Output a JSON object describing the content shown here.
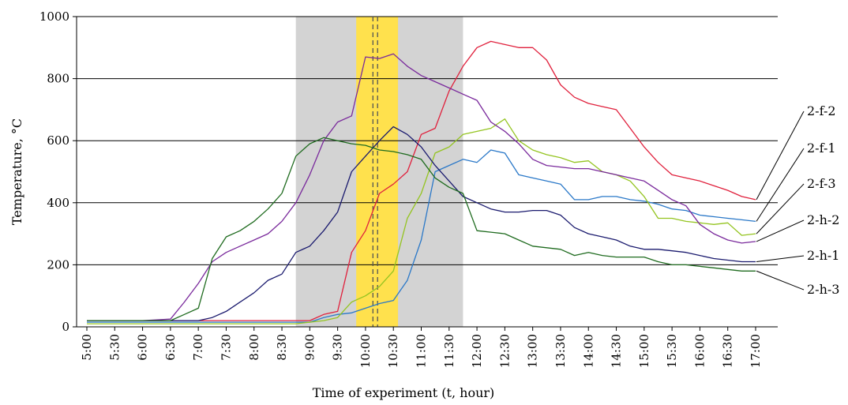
{
  "chart_data": {
    "type": "line",
    "title": "",
    "xlabel": "Time of experiment (t, hour)",
    "ylabel": "Temperature, °C",
    "ylim": [
      0,
      1000
    ],
    "yticks": [
      "0",
      "200",
      "400",
      "600",
      "800",
      "1000"
    ],
    "xlim_hours": [
      5.0,
      17.0
    ],
    "xticks": [
      "5:00",
      "5:30",
      "6:00",
      "6:30",
      "7:00",
      "7:30",
      "8:00",
      "8:30",
      "9:00",
      "9:30",
      "10:00",
      "10:30",
      "11:00",
      "11:30",
      "12:00",
      "12:30",
      "13:00",
      "13:30",
      "14:00",
      "14:30",
      "15:00",
      "15:30",
      "16:00",
      "16:30",
      "17:00"
    ],
    "grid": "horizontal",
    "bands": [
      {
        "from": "8:45",
        "to": "11:45",
        "color": "#d3d3d3"
      },
      {
        "from": "9:50",
        "to": "10:35",
        "color": "#ffe14d"
      }
    ],
    "markers": [
      "10:08",
      "10:13"
    ],
    "series": [
      {
        "name": "2-f-2",
        "color": "#e0203c",
        "x": [
          5.0,
          5.5,
          6.0,
          6.5,
          7.0,
          7.5,
          8.0,
          8.5,
          8.75,
          9.0,
          9.25,
          9.5,
          9.75,
          10.0,
          10.25,
          10.5,
          10.75,
          11.0,
          11.25,
          11.5,
          11.75,
          12.0,
          12.25,
          12.5,
          12.75,
          13.0,
          13.25,
          13.5,
          13.75,
          14.0,
          14.25,
          14.5,
          14.75,
          15.0,
          15.25,
          15.5,
          15.75,
          16.0,
          16.25,
          16.5,
          16.75,
          17.0
        ],
        "y": [
          20,
          20,
          20,
          20,
          20,
          20,
          20,
          20,
          20,
          20,
          40,
          50,
          240,
          310,
          430,
          460,
          500,
          620,
          640,
          760,
          840,
          900,
          920,
          910,
          900,
          900,
          860,
          780,
          740,
          720,
          710,
          700,
          640,
          580,
          530,
          490,
          480,
          470,
          455,
          440,
          420,
          410
        ]
      },
      {
        "name": "2-f-1",
        "color": "#2a78c8",
        "x": [
          5.0,
          5.5,
          6.0,
          6.5,
          7.0,
          7.5,
          8.0,
          8.5,
          8.75,
          9.0,
          9.25,
          9.5,
          9.75,
          10.0,
          10.25,
          10.5,
          10.75,
          11.0,
          11.25,
          11.5,
          11.75,
          12.0,
          12.25,
          12.5,
          12.75,
          13.0,
          13.25,
          13.5,
          13.75,
          14.0,
          14.25,
          14.5,
          14.75,
          15.0,
          15.25,
          15.5,
          15.75,
          16.0,
          16.25,
          16.5,
          16.75,
          17.0
        ],
        "y": [
          15,
          15,
          15,
          15,
          15,
          15,
          15,
          15,
          15,
          15,
          30,
          40,
          45,
          60,
          75,
          85,
          150,
          280,
          500,
          520,
          540,
          530,
          570,
          560,
          490,
          480,
          470,
          460,
          410,
          410,
          420,
          420,
          410,
          405,
          395,
          380,
          375,
          360,
          355,
          350,
          345,
          340
        ]
      },
      {
        "name": "2-f-3",
        "color": "#94c420",
        "x": [
          5.0,
          5.5,
          6.0,
          6.5,
          7.0,
          7.5,
          8.0,
          8.5,
          8.75,
          9.0,
          9.25,
          9.5,
          9.75,
          10.0,
          10.25,
          10.5,
          10.75,
          11.0,
          11.25,
          11.5,
          11.75,
          12.0,
          12.25,
          12.5,
          12.75,
          13.0,
          13.25,
          13.5,
          13.75,
          14.0,
          14.25,
          14.5,
          14.75,
          15.0,
          15.25,
          15.5,
          15.75,
          16.0,
          16.25,
          16.5,
          16.75,
          17.0
        ],
        "y": [
          10,
          10,
          10,
          10,
          10,
          10,
          10,
          10,
          10,
          15,
          20,
          30,
          80,
          100,
          130,
          180,
          350,
          430,
          560,
          580,
          620,
          630,
          640,
          670,
          600,
          570,
          555,
          545,
          530,
          535,
          500,
          490,
          470,
          420,
          350,
          350,
          340,
          335,
          330,
          335,
          295,
          300
        ]
      },
      {
        "name": "2-h-2",
        "color": "#7a2a9c",
        "x": [
          5.0,
          5.5,
          6.0,
          6.5,
          6.75,
          7.0,
          7.25,
          7.5,
          7.75,
          8.0,
          8.25,
          8.5,
          8.75,
          9.0,
          9.25,
          9.5,
          9.75,
          10.0,
          10.25,
          10.5,
          10.75,
          11.0,
          11.25,
          11.5,
          11.75,
          12.0,
          12.25,
          12.5,
          12.75,
          13.0,
          13.25,
          13.5,
          13.75,
          14.0,
          14.25,
          14.5,
          14.75,
          15.0,
          15.25,
          15.5,
          15.75,
          16.0,
          16.25,
          16.5,
          16.75,
          17.0
        ],
        "y": [
          20,
          20,
          20,
          25,
          80,
          140,
          210,
          240,
          260,
          280,
          300,
          340,
          400,
          490,
          600,
          660,
          680,
          870,
          865,
          880,
          840,
          810,
          790,
          770,
          750,
          730,
          660,
          630,
          590,
          540,
          520,
          515,
          510,
          510,
          500,
          490,
          480,
          470,
          440,
          410,
          390,
          330,
          300,
          280,
          270,
          275
        ]
      },
      {
        "name": "2-h-1",
        "color": "#1a1a6e",
        "x": [
          5.0,
          5.5,
          6.0,
          6.5,
          7.0,
          7.25,
          7.5,
          7.75,
          8.0,
          8.25,
          8.5,
          8.75,
          9.0,
          9.25,
          9.5,
          9.75,
          10.0,
          10.25,
          10.5,
          10.75,
          11.0,
          11.25,
          11.5,
          11.75,
          12.0,
          12.25,
          12.5,
          12.75,
          13.0,
          13.25,
          13.5,
          13.75,
          14.0,
          14.25,
          14.5,
          14.75,
          15.0,
          15.25,
          15.5,
          15.75,
          16.0,
          16.25,
          16.5,
          16.75,
          17.0
        ],
        "y": [
          20,
          20,
          20,
          20,
          20,
          30,
          50,
          80,
          110,
          150,
          170,
          240,
          260,
          310,
          370,
          500,
          550,
          600,
          645,
          620,
          580,
          520,
          470,
          420,
          400,
          380,
          370,
          370,
          375,
          375,
          360,
          320,
          300,
          290,
          280,
          260,
          250,
          250,
          245,
          240,
          230,
          220,
          215,
          210,
          210
        ]
      },
      {
        "name": "2-h-3",
        "color": "#1f6b1f",
        "x": [
          5.0,
          5.5,
          6.0,
          6.5,
          6.75,
          7.0,
          7.25,
          7.5,
          7.75,
          8.0,
          8.25,
          8.5,
          8.75,
          9.0,
          9.25,
          9.5,
          9.75,
          10.0,
          10.25,
          10.5,
          10.75,
          11.0,
          11.25,
          11.5,
          11.75,
          12.0,
          12.25,
          12.5,
          12.75,
          13.0,
          13.25,
          13.5,
          13.75,
          14.0,
          14.25,
          14.5,
          14.75,
          15.0,
          15.25,
          15.5,
          15.75,
          16.0,
          16.25,
          16.5,
          16.75,
          17.0
        ],
        "y": [
          20,
          20,
          20,
          20,
          40,
          60,
          220,
          290,
          310,
          340,
          380,
          430,
          550,
          590,
          610,
          600,
          590,
          585,
          570,
          565,
          555,
          540,
          480,
          450,
          430,
          310,
          305,
          300,
          280,
          260,
          255,
          250,
          230,
          240,
          230,
          225,
          225,
          225,
          210,
          200,
          200,
          195,
          190,
          185,
          180,
          180
        ]
      }
    ]
  }
}
